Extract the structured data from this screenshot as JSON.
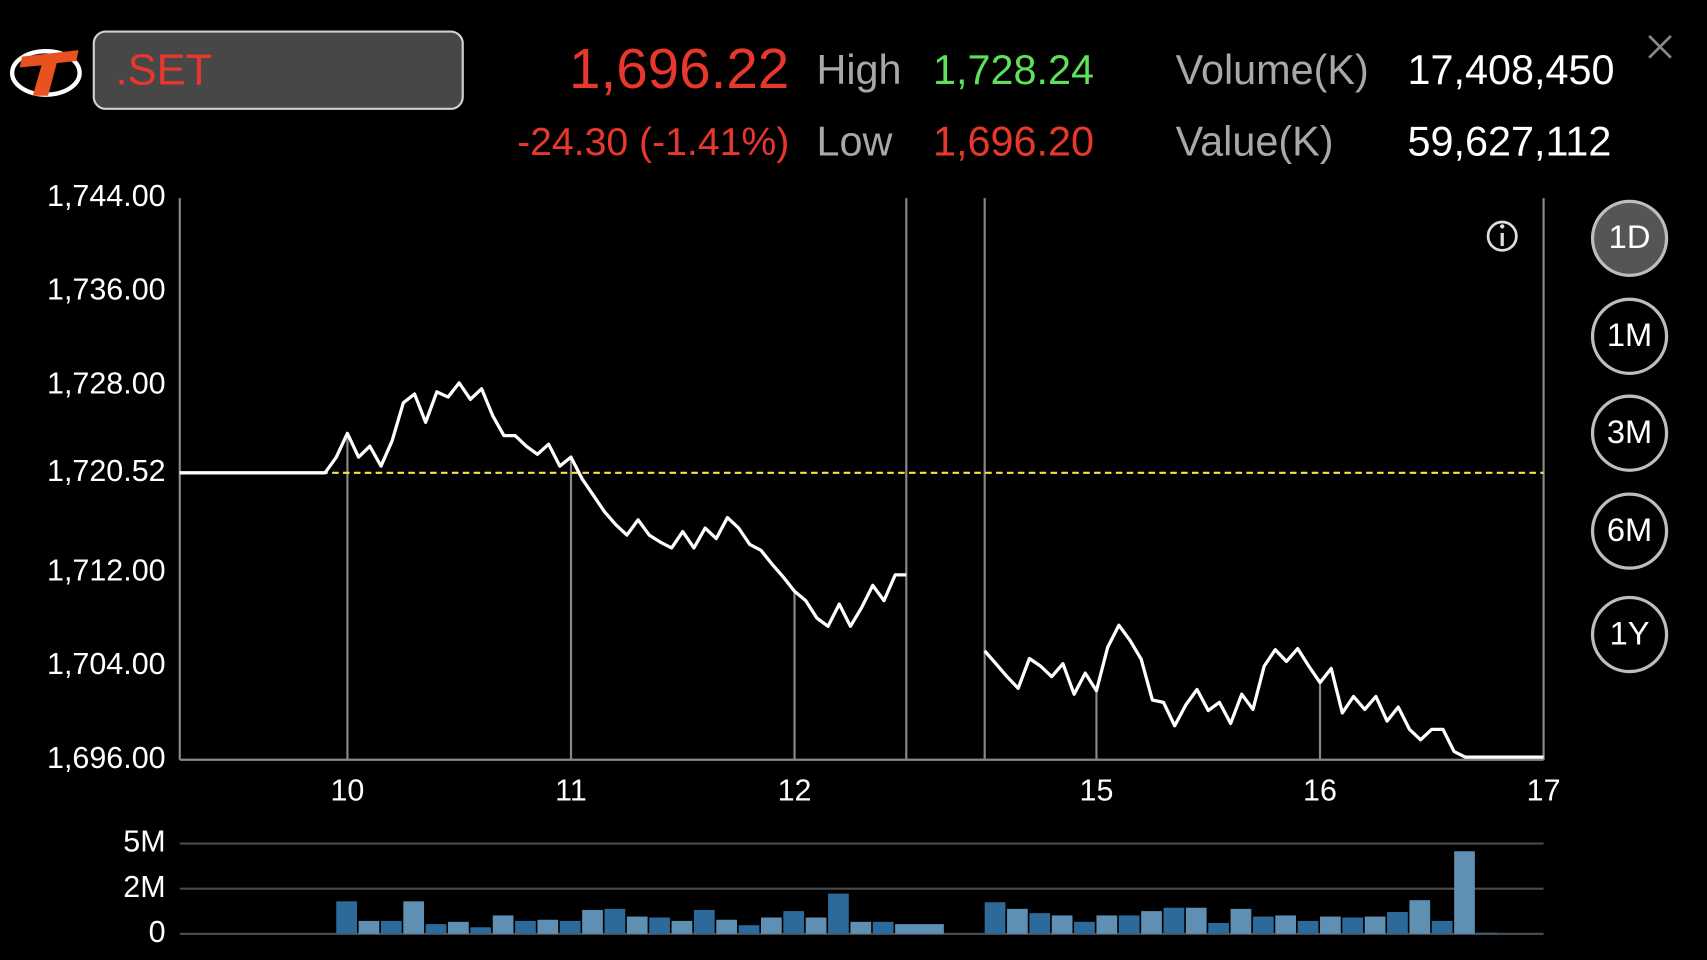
{
  "header": {
    "symbol": ".SET",
    "last": "1,696.22",
    "change": "-24.30 (-1.41%)",
    "high_label": "High",
    "high": "1,728.24",
    "low_label": "Low",
    "low": "1,696.20",
    "volume_label": "Volume(K)",
    "volume": "17,408,450",
    "value_label": "Value(K)",
    "value": "59,627,112"
  },
  "range_buttons": [
    "1D",
    "1M",
    "3M",
    "6M",
    "1Y"
  ],
  "chart_data": [
    {
      "type": "line",
      "color": "#ffffff",
      "x": [
        9.25,
        9.9,
        9.95,
        10,
        10.05,
        10.1,
        10.15,
        10.2,
        10.25,
        10.3,
        10.35,
        10.4,
        10.45,
        10.5,
        10.55,
        10.6,
        10.65,
        10.7,
        10.75,
        10.8,
        10.85,
        10.9,
        10.95,
        11,
        11.05,
        11.1,
        11.15,
        11.2,
        11.25,
        11.3,
        11.35,
        11.4,
        11.45,
        11.5,
        11.55,
        11.6,
        11.65,
        11.7,
        11.75,
        11.8,
        11.85,
        11.9,
        11.95,
        12,
        12.05,
        12.1,
        12.15,
        12.2,
        12.25,
        12.3,
        12.35,
        12.4,
        12.45,
        12.5,
        13.5,
        14.5,
        14.55,
        14.6,
        14.65,
        14.7,
        14.75,
        14.8,
        14.85,
        14.9,
        14.95,
        15,
        15.05,
        15.1,
        15.15,
        15.2,
        15.25,
        15.3,
        15.35,
        15.4,
        15.45,
        15.5,
        15.55,
        15.6,
        15.65,
        15.7,
        15.75,
        15.8,
        15.85,
        15.9,
        15.95,
        16,
        16.05,
        16.1,
        16.15,
        16.2,
        16.25,
        16.3,
        16.35,
        16.4,
        16.45,
        16.5,
        16.55,
        16.6,
        16.65,
        17
      ],
      "values": [
        1720.52,
        1720.52,
        1721.86,
        1723.9,
        1721.86,
        1722.8,
        1721.1,
        1723.26,
        1726.5,
        1727.26,
        1724.84,
        1727.44,
        1727.0,
        1728.2,
        1726.8,
        1727.7,
        1725.4,
        1723.7,
        1723.7,
        1722.8,
        1722.1,
        1722.97,
        1721.1,
        1721.86,
        1720.0,
        1718.6,
        1717.2,
        1716.1,
        1715.2,
        1716.5,
        1715.2,
        1714.6,
        1714.1,
        1715.5,
        1714.1,
        1715.8,
        1714.9,
        1716.7,
        1715.8,
        1714.4,
        1713.9,
        1712.7,
        1711.6,
        1710.4,
        1709.6,
        1708.1,
        1707.4,
        1709.3,
        1707.4,
        1709.0,
        1710.9,
        1709.6,
        1711.8,
        1711.8,
        null,
        1705.3,
        1704.2,
        1703.1,
        1702.1,
        1704.65,
        1704.0,
        1703.1,
        1704.2,
        1701.6,
        1703.4,
        1701.9,
        1705.6,
        1707.5,
        1706.2,
        1704.6,
        1701.1,
        1700.9,
        1698.9,
        1700.7,
        1702.0,
        1700.2,
        1700.9,
        1699.1,
        1701.6,
        1700.3,
        1704.0,
        1705.4,
        1704.4,
        1705.5,
        1704.0,
        1702.6,
        1703.8,
        1700.0,
        1701.4,
        1700.3,
        1701.4,
        1699.3,
        1700.5,
        1698.6,
        1697.7,
        1698.6,
        1698.6,
        1696.7,
        1696.22,
        1696.22
      ],
      "xlim": [
        9.25,
        17
      ],
      "axis_break": [
        12.5,
        14.5
      ],
      "xticks": [
        10,
        11,
        12,
        15,
        16,
        17
      ],
      "ylim": [
        1696,
        1744
      ],
      "yticks": [
        {
          "value": 1696,
          "label": "1,696.00"
        },
        {
          "value": 1704,
          "label": "1,704.00"
        },
        {
          "value": 1712,
          "label": "1,712.00"
        },
        {
          "value": 1728,
          "label": "1,728.00"
        },
        {
          "value": 1736,
          "label": "1,736.00"
        },
        {
          "value": 1744,
          "label": "1,744.00"
        }
      ],
      "reference_line": {
        "value": 1720.52,
        "label": "1,720.52",
        "color": "#f2e64b"
      }
    },
    {
      "type": "bar",
      "colors": [
        "#2d6a99",
        "#5f8fb3"
      ],
      "x": [
        9.95,
        10.05,
        10.15,
        10.25,
        10.35,
        10.45,
        10.55,
        10.65,
        10.75,
        10.85,
        10.95,
        11.05,
        11.15,
        11.25,
        11.35,
        11.45,
        11.55,
        11.65,
        11.75,
        11.85,
        11.95,
        12.05,
        12.15,
        12.25,
        12.35,
        12.45,
        14.5,
        14.6,
        14.7,
        14.8,
        14.9,
        15.0,
        15.1,
        15.2,
        15.3,
        15.4,
        15.5,
        15.6,
        15.7,
        15.8,
        15.9,
        16.0,
        16.1,
        16.2,
        16.3,
        16.4,
        16.5,
        16.6,
        16.7
      ],
      "values": [
        1730000,
        690000,
        690000,
        1730000,
        520000,
        640000,
        350000,
        980000,
        690000,
        750000,
        690000,
        1270000,
        1330000,
        920000,
        870000,
        690000,
        1270000,
        750000,
        460000,
        870000,
        1210000,
        870000,
        2140000,
        640000,
        640000,
        520000,
        1680000,
        1330000,
        1100000,
        980000,
        640000,
        980000,
        980000,
        1210000,
        1390000,
        1390000,
        580000,
        1330000,
        920000,
        980000,
        690000,
        920000,
        870000,
        920000,
        1160000,
        1790000,
        690000,
        4390000,
        60000
      ],
      "xlim": [
        9.25,
        17
      ],
      "axis_break": [
        12.5,
        14.5
      ],
      "ylim": [
        0,
        4800000
      ],
      "yticks": [
        0,
        {
          "value": 2400000,
          "label": "2M"
        },
        {
          "value": 4800000,
          "label": "5M"
        }
      ]
    }
  ]
}
